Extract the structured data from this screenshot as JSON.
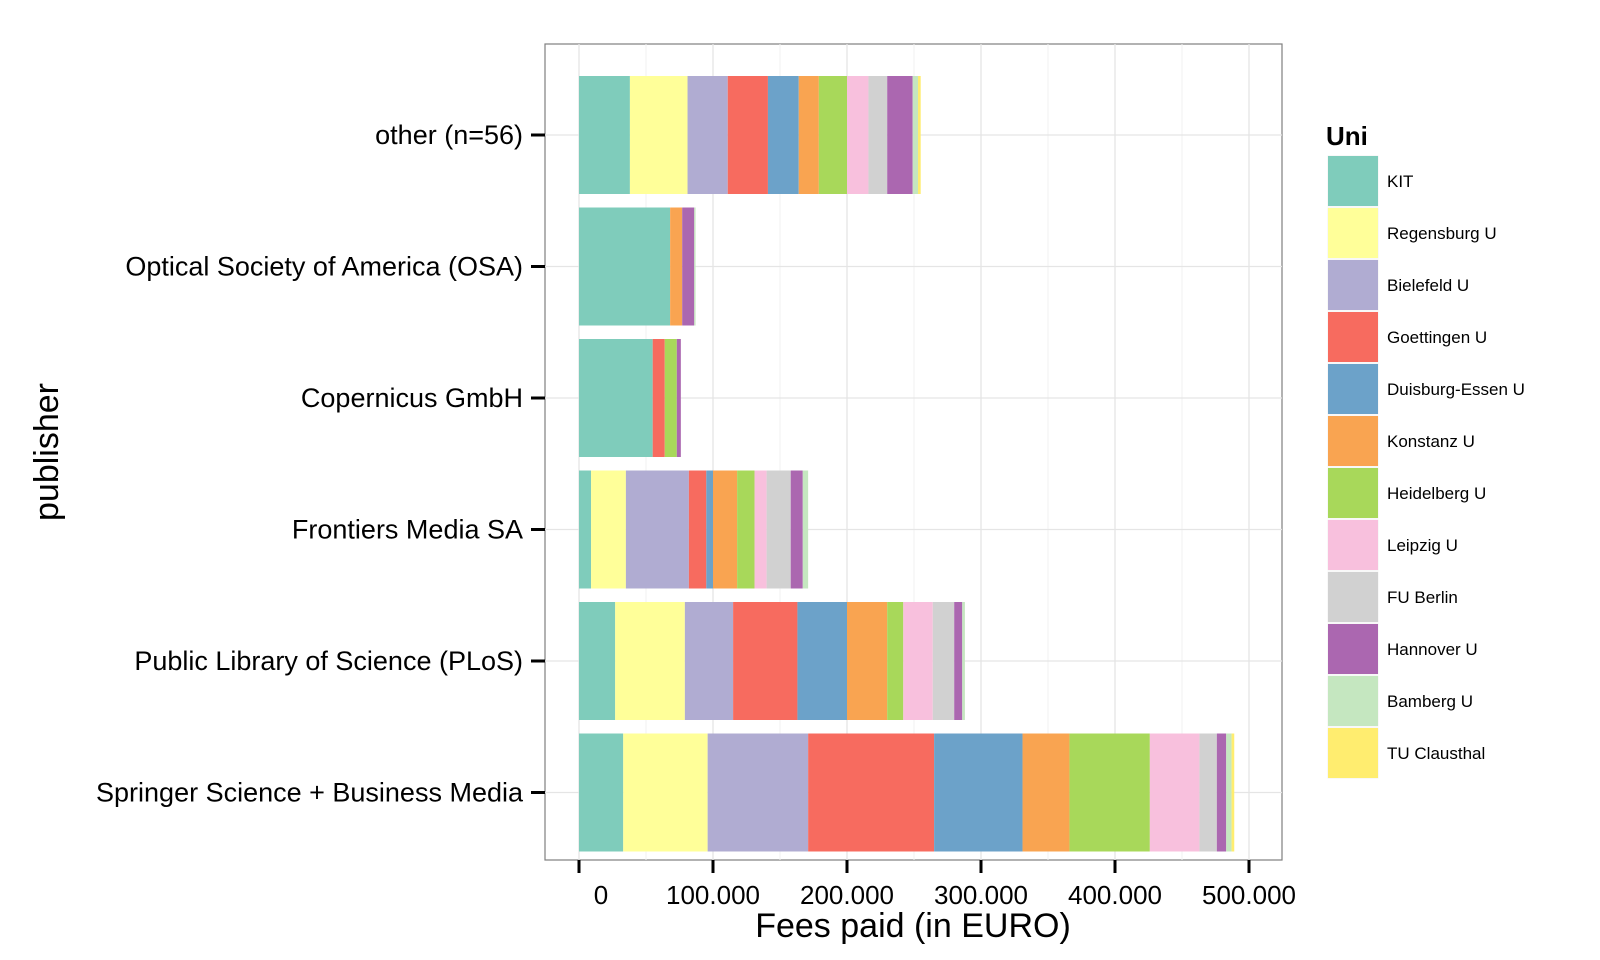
{
  "chart_data": {
    "type": "bar",
    "orientation": "horizontal",
    "stacked": true,
    "xlabel": "Fees paid (in EURO)",
    "ylabel": "publisher",
    "xlim": [
      -25000,
      525000
    ],
    "x_ticks": [
      0,
      100000,
      200000,
      300000,
      400000,
      500000
    ],
    "x_tick_labels": [
      "0",
      "100.000",
      "200.000",
      "300.000",
      "400.000",
      "500.000"
    ],
    "grid": true,
    "legend": {
      "title": "Uni",
      "position": "right"
    },
    "categories": [
      "Springer Science + Business Media",
      "Public Library of Science (PLoS)",
      "Frontiers Media SA",
      "Copernicus GmbH",
      "Optical Society of America (OSA)",
      "other (n=56)"
    ],
    "series": [
      {
        "name": "KIT",
        "color": "#7fccbb",
        "values": [
          33000,
          27000,
          9000,
          55000,
          68000,
          38000
        ]
      },
      {
        "name": "Regensburg U",
        "color": "#ffff99",
        "values": [
          63000,
          52000,
          26000,
          0,
          0,
          43000
        ]
      },
      {
        "name": "Bielefeld U",
        "color": "#b0acd2",
        "values": [
          75000,
          36000,
          47000,
          0,
          0,
          30000
        ]
      },
      {
        "name": "Goettingen U",
        "color": "#f76b5f",
        "values": [
          94000,
          48000,
          13000,
          9000,
          0,
          30000
        ]
      },
      {
        "name": "Duisburg-Essen U",
        "color": "#6ca2c9",
        "values": [
          66000,
          37000,
          5000,
          0,
          0,
          23000
        ]
      },
      {
        "name": "Konstanz U",
        "color": "#f9a451",
        "values": [
          35000,
          30000,
          18000,
          0,
          9000,
          15000
        ]
      },
      {
        "name": "Heidelberg U",
        "color": "#a8d85a",
        "values": [
          60000,
          12000,
          13000,
          9000,
          0,
          21000
        ]
      },
      {
        "name": "Leipzig U",
        "color": "#f8c0dd",
        "values": [
          37000,
          22000,
          9000,
          0,
          0,
          16000
        ]
      },
      {
        "name": "FU Berlin",
        "color": "#d1d1d1",
        "values": [
          13000,
          16000,
          18000,
          0,
          0,
          14000
        ]
      },
      {
        "name": "Hannover U",
        "color": "#ab67b0",
        "values": [
          7000,
          6000,
          9000,
          3000,
          9000,
          19000
        ]
      },
      {
        "name": "Bamberg U",
        "color": "#c5e7c0",
        "values": [
          4000,
          2000,
          4000,
          0,
          1000,
          4000
        ]
      },
      {
        "name": "TU Clausthal",
        "color": "#ffed6f",
        "values": [
          2000,
          0,
          0,
          0,
          0,
          2000
        ]
      }
    ]
  }
}
